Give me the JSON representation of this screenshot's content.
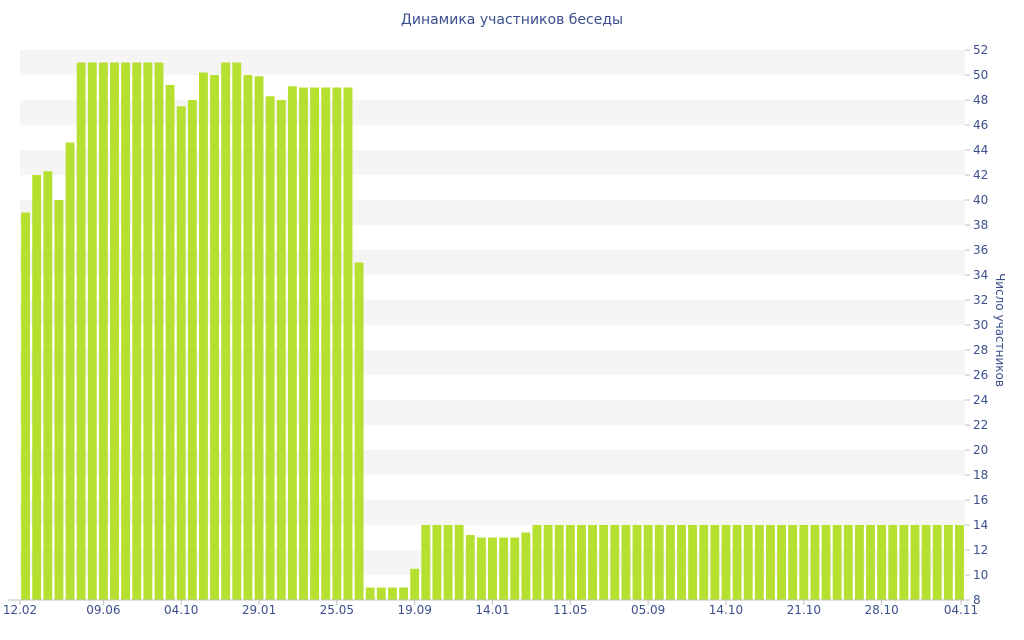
{
  "chart_data": {
    "type": "bar",
    "title": "Динамика участников беседы",
    "xlabel": "",
    "ylabel": "Число участников",
    "ylim": [
      8,
      52
    ],
    "yticks": [
      8,
      10,
      12,
      14,
      16,
      18,
      20,
      22,
      24,
      26,
      28,
      30,
      32,
      34,
      36,
      38,
      40,
      42,
      44,
      46,
      48,
      50,
      52
    ],
    "y_axis_position": "right",
    "grid": "alternating horizontal bands",
    "xtick_labels": [
      "12.02",
      "09.06",
      "04.10",
      "29.01",
      "25.05",
      "19.09",
      "14.01",
      "11.05",
      "05.09",
      "14.10",
      "21.10",
      "28.10",
      "04.11"
    ],
    "xtick_bar_index": [
      0,
      7,
      14,
      21,
      28,
      35,
      42,
      49,
      56,
      63,
      70,
      77,
      84
    ],
    "values": [
      39,
      42,
      42.3,
      40,
      44.6,
      51,
      51,
      51,
      51,
      51,
      51,
      51,
      51,
      49.2,
      47.5,
      48,
      50.2,
      50,
      51,
      51,
      50,
      49.9,
      48.3,
      48,
      49.1,
      49,
      49,
      49,
      49,
      49,
      35,
      9,
      9,
      9,
      9,
      10.5,
      14,
      14,
      14,
      14,
      13.2,
      13,
      13,
      13,
      13,
      13.4,
      14,
      14,
      14,
      14,
      14,
      14,
      14,
      14,
      14,
      14,
      14,
      14,
      14,
      14,
      14,
      14,
      14,
      14,
      14,
      14,
      14,
      14,
      14,
      14,
      14,
      14,
      14,
      14,
      14,
      14,
      14,
      14,
      14,
      14,
      14,
      14,
      14,
      14,
      14
    ],
    "colors": {
      "bar": "#b5e02f",
      "band": "#f5f5f5",
      "text": "#3b4f8c",
      "axis": "#c0c0c0"
    }
  }
}
